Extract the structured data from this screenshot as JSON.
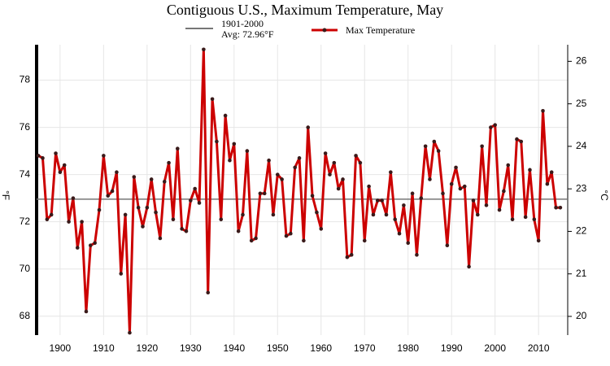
{
  "chart_data": {
    "type": "line",
    "title": "Contiguous U.S., Maximum Temperature, May",
    "ylabel": "°F",
    "y2label": "°C",
    "x": [
      1895,
      1896,
      1897,
      1898,
      1899,
      1900,
      1901,
      1902,
      1903,
      1904,
      1905,
      1906,
      1907,
      1908,
      1909,
      1910,
      1911,
      1912,
      1913,
      1914,
      1915,
      1916,
      1917,
      1918,
      1919,
      1920,
      1921,
      1922,
      1923,
      1924,
      1925,
      1926,
      1927,
      1928,
      1929,
      1930,
      1931,
      1932,
      1933,
      1934,
      1935,
      1936,
      1937,
      1938,
      1939,
      1940,
      1941,
      1942,
      1943,
      1944,
      1945,
      1946,
      1947,
      1948,
      1949,
      1950,
      1951,
      1952,
      1953,
      1954,
      1955,
      1956,
      1957,
      1958,
      1959,
      1960,
      1961,
      1962,
      1963,
      1964,
      1965,
      1966,
      1967,
      1968,
      1969,
      1970,
      1971,
      1972,
      1973,
      1974,
      1975,
      1976,
      1977,
      1978,
      1979,
      1980,
      1981,
      1982,
      1983,
      1984,
      1985,
      1986,
      1987,
      1988,
      1989,
      1990,
      1991,
      1992,
      1993,
      1994,
      1995,
      1996,
      1997,
      1998,
      1999,
      2000,
      2001,
      2002,
      2003,
      2004,
      2005,
      2006,
      2007,
      2008,
      2009,
      2010,
      2011,
      2012,
      2013,
      2014,
      2015
    ],
    "series": [
      {
        "name": "Max Temperature",
        "color": "#cc0000",
        "marker_color": "#3a1a1a",
        "values": [
          74.8,
          74.7,
          72.1,
          72.3,
          74.9,
          74.1,
          74.4,
          72.0,
          73.0,
          70.9,
          72.0,
          68.2,
          71.0,
          71.1,
          72.5,
          74.8,
          73.1,
          73.3,
          74.1,
          69.8,
          72.3,
          67.3,
          73.9,
          72.6,
          71.8,
          72.6,
          73.8,
          72.4,
          71.3,
          73.7,
          74.5,
          72.1,
          75.1,
          71.7,
          71.6,
          72.9,
          73.4,
          72.8,
          79.3,
          69.0,
          77.2,
          75.4,
          72.1,
          76.5,
          74.6,
          75.3,
          71.6,
          72.3,
          75.0,
          71.2,
          71.3,
          73.2,
          73.2,
          74.6,
          72.3,
          74.0,
          73.8,
          71.4,
          71.5,
          74.3,
          74.7,
          71.2,
          76.0,
          73.1,
          72.4,
          71.7,
          74.9,
          74.0,
          74.5,
          73.4,
          73.8,
          70.5,
          70.6,
          74.8,
          74.5,
          71.2,
          73.5,
          72.3,
          72.9,
          72.9,
          72.3,
          74.1,
          72.1,
          71.5,
          72.7,
          71.1,
          73.2,
          70.6,
          73.0,
          75.2,
          73.8,
          75.4,
          75.0,
          73.2,
          71.0,
          73.6,
          74.3,
          73.4,
          73.5,
          70.1,
          72.9,
          72.3,
          75.2,
          72.7,
          76.0,
          76.1,
          72.5,
          73.3,
          74.4,
          72.1,
          75.5,
          75.4,
          72.2,
          74.2,
          72.1,
          71.2,
          76.7,
          73.6,
          74.1,
          72.6,
          72.6
        ]
      }
    ],
    "reference": {
      "name": "1901-2000",
      "label": "Avg: 72.96°F",
      "value": 72.96,
      "color": "#777777"
    },
    "xlim": [
      1894.6,
      2016.7
    ],
    "xticks": [
      1900,
      1910,
      1920,
      1930,
      1940,
      1950,
      1960,
      1970,
      1980,
      1990,
      2000,
      2010
    ],
    "ylim": [
      67.2,
      79.5
    ],
    "yticks": [
      68,
      70,
      72,
      74,
      76,
      78
    ],
    "y2lim": [
      19.56,
      26.39
    ],
    "y2ticks": [
      20,
      21,
      22,
      23,
      24,
      25,
      26
    ],
    "grid": true
  }
}
